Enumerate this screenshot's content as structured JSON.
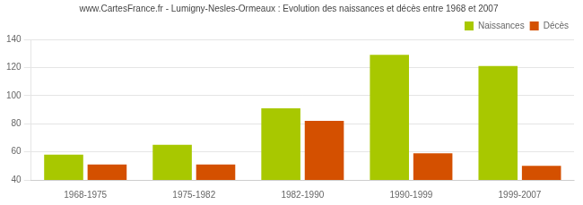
{
  "chart_data": {
    "type": "bar",
    "title": "www.CartesFrance.fr - Lumigny-Nesles-Ormeaux : Evolution des naissances et décès entre 1968 et 2007",
    "categories": [
      "1968-1975",
      "1975-1982",
      "1982-1990",
      "1990-1999",
      "1999-2007"
    ],
    "series": [
      {
        "name": "Naissances",
        "color": "#a8c800",
        "values": [
          58,
          65,
          91,
          129,
          121
        ]
      },
      {
        "name": "Décès",
        "color": "#d45000",
        "values": [
          51,
          51,
          82,
          59,
          50
        ]
      }
    ],
    "ylim": [
      40,
      140
    ],
    "yticks": [
      40,
      60,
      80,
      100,
      120,
      140
    ],
    "grid": true,
    "legend": "upper right"
  }
}
